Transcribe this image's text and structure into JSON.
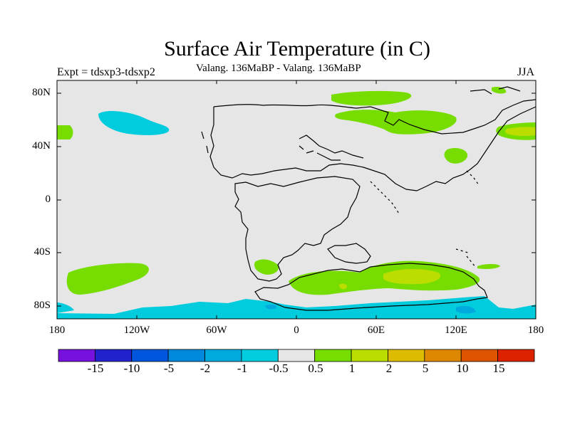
{
  "header": {
    "title": "Surface Air Temperature (in C)",
    "subtitle": "Valang. 136MaBP - Valang. 136MaBP",
    "experiment": "Expt = tdsxp3-tdsxp2",
    "season": "JJA"
  },
  "axes": {
    "lat_labels": [
      "80N",
      "40N",
      "0",
      "40S",
      "80S"
    ],
    "lon_labels": [
      "180",
      "120W",
      "60W",
      "0",
      "60E",
      "120E",
      "180"
    ]
  },
  "colorbar": {
    "labels": [
      "-15",
      "-10",
      "-5",
      "-2",
      "-1",
      "-0.5",
      "0.5",
      "1",
      "2",
      "5",
      "10",
      "15"
    ],
    "colors": [
      "#7711dd",
      "#2222cc",
      "#0055dd",
      "#0088dd",
      "#00aadd",
      "#00ccdd",
      "#e6e6e6",
      "#77dd00",
      "#bbdd00",
      "#ddbb00",
      "#dd8800",
      "#dd5500",
      "#dd2200"
    ]
  },
  "chart_data": {
    "type": "heatmap",
    "title": "Surface Air Temperature (in C)",
    "subtitle": "Valang. 136MaBP - Valang. 136MaBP",
    "experiment": "Expt = tdsxp3-tdsxp2",
    "season": "JJA",
    "variable": "surface air temperature difference",
    "units": "C",
    "lon_range": [
      -180,
      180
    ],
    "lat_range": [
      -90,
      90
    ],
    "contour_levels": [
      -15,
      -10,
      -5,
      -2,
      -1,
      -0.5,
      0.5,
      1,
      2,
      5,
      10,
      15
    ],
    "background_value_range": [
      -0.5,
      0.5
    ],
    "anomaly_regions": [
      {
        "lon": -130,
        "lat": 58,
        "value_range": [
          -1,
          -0.5
        ]
      },
      {
        "lon": -175,
        "lat": 49,
        "value_range": [
          0.5,
          1
        ]
      },
      {
        "lon": -140,
        "lat": -58,
        "value_range": [
          0.5,
          1
        ]
      },
      {
        "lon": 45,
        "lat": 78,
        "value_range": [
          0.5,
          1
        ]
      },
      {
        "lon": 50,
        "lat": 60,
        "value_range": [
          0.5,
          1
        ]
      },
      {
        "lon": 100,
        "lat": 60,
        "value_range": [
          0.5,
          1
        ]
      },
      {
        "lon": 170,
        "lat": 50,
        "value_range": [
          1,
          2
        ]
      },
      {
        "lon": 130,
        "lat": 32,
        "value_range": [
          0.5,
          1
        ]
      },
      {
        "lon": 90,
        "lat": -60,
        "value_range": [
          1,
          2
        ]
      },
      {
        "lon": 30,
        "lat": -62,
        "value_range": [
          0.5,
          1
        ]
      },
      {
        "lon": -35,
        "lat": -48,
        "value_range": [
          0.5,
          1
        ]
      },
      {
        "lon": 0,
        "lat": -87,
        "value_range": [
          -1,
          -0.5
        ]
      }
    ]
  }
}
